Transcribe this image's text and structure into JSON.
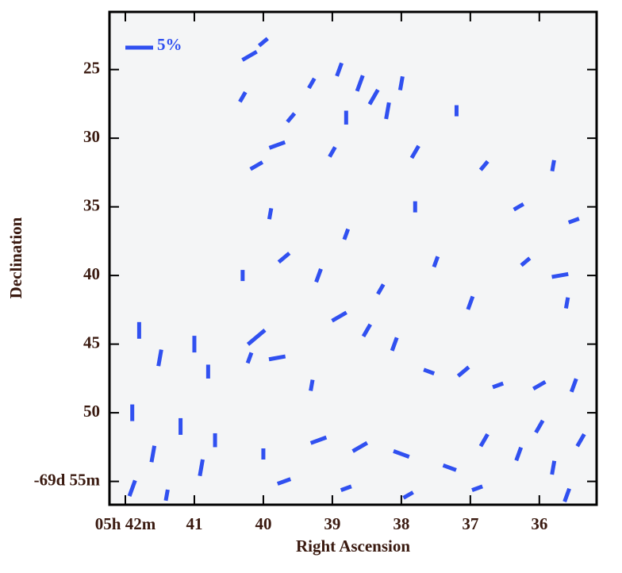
{
  "chart_data": {
    "type": "vector",
    "xlabel": "Right Ascension",
    "ylabel": "Declination",
    "xlim": [
      42.23,
      35.17
    ],
    "ylim": [
      56.7,
      20.8
    ],
    "xticks": [
      {
        "value": 42,
        "label": "05h 42m"
      },
      41,
      40,
      39,
      38,
      37,
      36
    ],
    "yticks": [
      25,
      30,
      35,
      40,
      45,
      50,
      {
        "value": 55,
        "label": "-69d 55m"
      }
    ],
    "color": "#3050f0",
    "scale_bar": {
      "value": 5,
      "label": "5%"
    },
    "series": [
      {
        "x": [
          38.6,
          38.4,
          38.2,
          38.8,
          38.0,
          38.9,
          39.3,
          40.2,
          40.0,
          39.6,
          40.3,
          37.2,
          37.8,
          39.0,
          39.8,
          40.1,
          39.9,
          39.7,
          38.8,
          37.8,
          36.8,
          36.3,
          35.8,
          35.5,
          37.5,
          36.2,
          35.7,
          39.2,
          40.3,
          38.3,
          37.0,
          35.6,
          41.8,
          41.5,
          41.0,
          40.8,
          41.9,
          41.6,
          41.2,
          40.9,
          41.9,
          40.7,
          41.4,
          40.1,
          39.8,
          40.2,
          38.9,
          38.5,
          38.1,
          39.3,
          37.6,
          37.1,
          36.6,
          36.0,
          35.5,
          39.2,
          38.6,
          38.0,
          37.3,
          36.8,
          36.3,
          35.8,
          35.4,
          40.0,
          39.7,
          38.8,
          37.9,
          36.9,
          36.0,
          35.6
        ],
        "y": [
          26,
          27,
          28,
          28.5,
          26,
          25,
          26,
          24,
          23,
          28.5,
          27,
          28,
          31,
          31,
          30.5,
          32,
          35.5,
          38.7,
          37,
          35,
          32,
          35,
          32,
          36,
          39,
          39,
          40,
          40,
          40,
          41,
          42,
          42,
          44,
          46,
          45,
          47,
          50,
          53,
          51,
          54,
          55.5,
          52,
          56,
          44.5,
          46,
          46,
          43,
          44,
          45,
          48,
          47,
          47,
          48,
          48,
          48,
          52,
          52.5,
          53,
          54,
          52,
          53,
          54,
          52,
          53,
          55,
          55.5,
          56,
          55.5,
          51,
          56
        ],
        "angle": [
          70,
          60,
          80,
          90,
          80,
          70,
          60,
          30,
          40,
          50,
          60,
          90,
          60,
          60,
          20,
          30,
          80,
          40,
          70,
          90,
          50,
          30,
          80,
          20,
          70,
          40,
          10,
          70,
          90,
          60,
          70,
          80,
          90,
          80,
          90,
          90,
          90,
          80,
          90,
          80,
          70,
          90,
          80,
          40,
          10,
          70,
          30,
          60,
          70,
          80,
          -20,
          40,
          20,
          30,
          70,
          20,
          30,
          -20,
          -20,
          60,
          70,
          80,
          60,
          90,
          20,
          20,
          30,
          20,
          60,
          70
        ],
        "p": [
          3,
          3,
          3,
          2.5,
          2.5,
          2.5,
          2,
          3,
          2,
          2,
          2,
          2,
          2.5,
          2,
          3,
          2.5,
          2,
          2.5,
          2,
          2,
          2,
          2,
          2,
          2,
          2,
          2,
          3,
          2.5,
          2,
          2,
          2.5,
          2,
          3,
          3,
          3,
          2.5,
          3,
          3,
          3,
          3,
          3,
          2.5,
          2,
          4,
          3,
          2,
          3,
          2.5,
          2.5,
          2,
          2,
          2.5,
          2,
          2.5,
          2.5,
          3,
          3,
          3,
          2.5,
          2.5,
          2.5,
          2.5,
          2.5,
          2,
          2.5,
          2,
          2,
          2,
          2.5,
          2.5
        ]
      }
    ]
  }
}
